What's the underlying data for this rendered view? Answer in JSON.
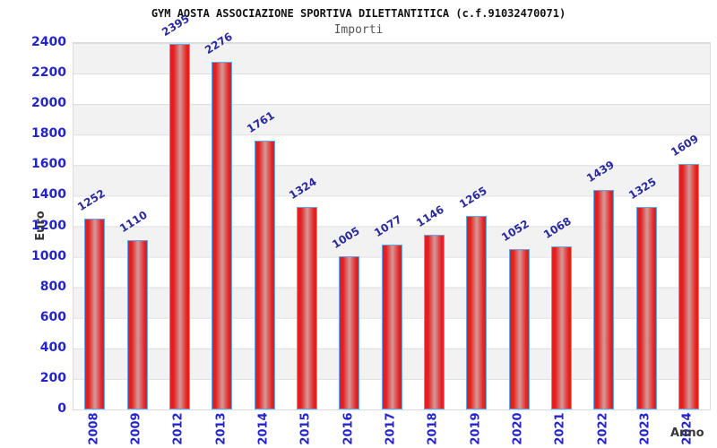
{
  "chart_data": {
    "type": "bar",
    "title": "GYM AOSTA ASSOCIAZIONE SPORTIVA DILETTANTITICA (c.f.91032470071)",
    "subtitle": "Importi",
    "xlabel": "Anno",
    "ylabel": "Euro",
    "categories": [
      "2008",
      "2009",
      "2012",
      "2013",
      "2014",
      "2015",
      "2016",
      "2017",
      "2018",
      "2019",
      "2020",
      "2021",
      "2022",
      "2023",
      "2024"
    ],
    "values": [
      1252,
      1110,
      2395,
      2276,
      1761,
      1324,
      1005,
      1077,
      1146,
      1265,
      1052,
      1068,
      1439,
      1325,
      1609
    ],
    "ylim": [
      0,
      2400
    ],
    "yticks": [
      0,
      200,
      400,
      600,
      800,
      1000,
      1200,
      1400,
      1600,
      1800,
      2000,
      2200,
      2400
    ],
    "grid": "horizontal-bands-alternating",
    "legend": "none"
  },
  "colors": {
    "title_color": "#111111",
    "subtitle_color": "#555555",
    "bar_fill": "#e32020",
    "bar_highlight": "#d69898",
    "bar_border": "#5fa8ee",
    "value_label": "#2b2b9c",
    "axis_label": "#2424cc",
    "axis_title": "#383838",
    "band_gray": "#f2f2f2",
    "band_white": "#ffffff",
    "grid_line": "#dcdcdc"
  }
}
